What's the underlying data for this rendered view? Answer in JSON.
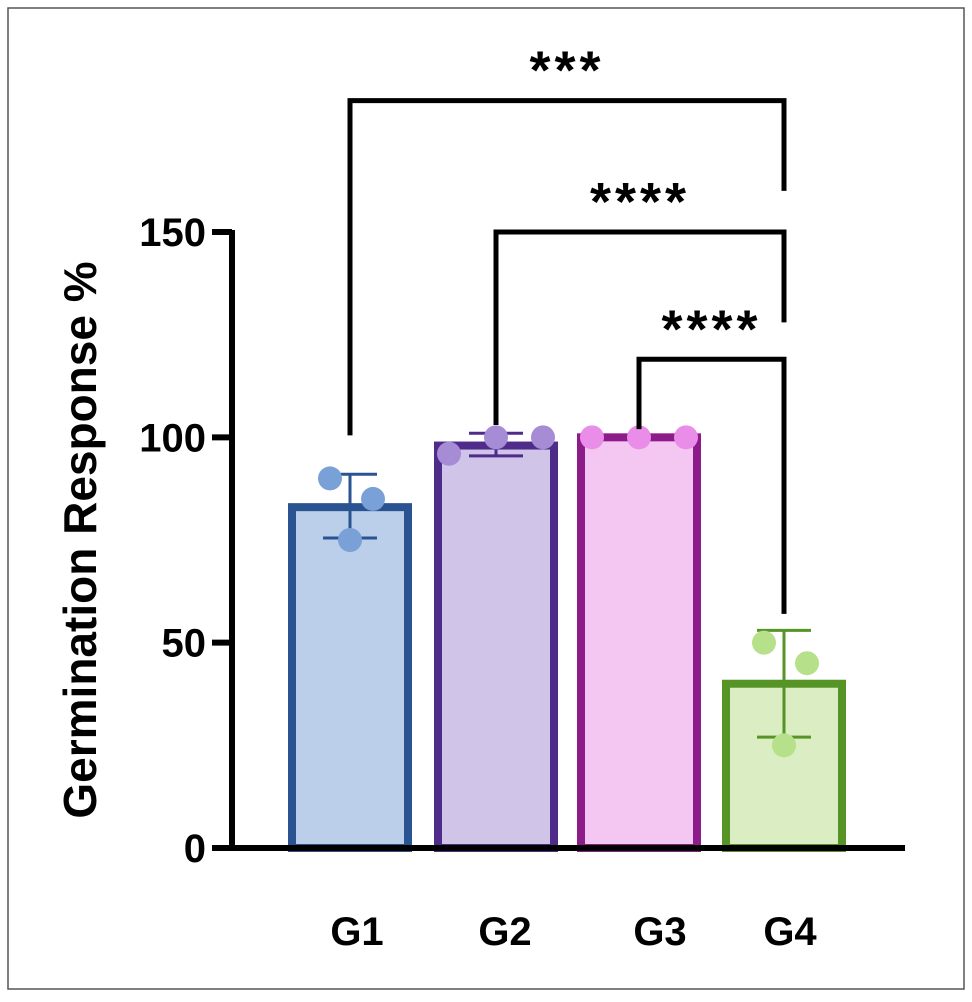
{
  "chart_data": {
    "type": "bar",
    "title": "",
    "xlabel": "",
    "ylabel": "Germination Response %",
    "ylim": [
      0,
      150
    ],
    "yticks": [
      0,
      50,
      100,
      150
    ],
    "categories": [
      "G1",
      "G2",
      "G3",
      "G4"
    ],
    "values": [
      83,
      98,
      100,
      40
    ],
    "error_low": [
      75.5,
      95.5,
      100,
      27
    ],
    "error_high": [
      91,
      101,
      100,
      53
    ],
    "points": [
      [
        90,
        85,
        75
      ],
      [
        96,
        100,
        100
      ],
      [
        100,
        100,
        100
      ],
      [
        50,
        45,
        25
      ]
    ],
    "colors": {
      "fill": [
        "#bccfea",
        "#d1c4e9",
        "#f3c7f1",
        "#dbedc3"
      ],
      "stroke": [
        "#2a5391",
        "#4f2b8a",
        "#8e1b8a",
        "#559425"
      ],
      "point": [
        "#7aa0d8",
        "#a68bd5",
        "#e98de8",
        "#b6e08a"
      ]
    },
    "comparisons": [
      {
        "from": "G1",
        "to": "G4",
        "label": "***",
        "level": 182
      },
      {
        "from": "G2",
        "to": "G4",
        "label": "****",
        "level": 150
      },
      {
        "from": "G3",
        "to": "G4",
        "label": "****",
        "level": 119
      }
    ]
  }
}
